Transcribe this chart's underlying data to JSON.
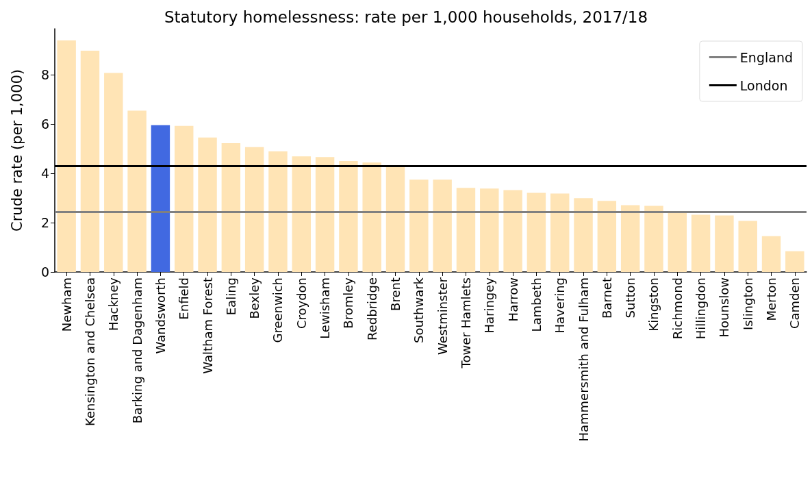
{
  "chart_data": {
    "type": "bar",
    "title": "Statutory homelessness: rate per 1,000 households, 2017/18",
    "ylabel": "Crude rate (per 1,000)",
    "categories": [
      "Newham",
      "Kensington and Chelsea",
      "Hackney",
      "Barking and Dagenham",
      "Wandsworth",
      "Enfield",
      "Waltham Forest",
      "Ealing",
      "Bexley",
      "Greenwich",
      "Croydon",
      "Lewisham",
      "Bromley",
      "Redbridge",
      "Brent",
      "Southwark",
      "Westminster",
      "Tower Hamlets",
      "Haringey",
      "Harrow",
      "Lambeth",
      "Havering",
      "Hammersmith and Fulham",
      "Barnet",
      "Sutton",
      "Kingston",
      "Richmond",
      "Hillingdon",
      "Hounslow",
      "Islington",
      "Merton",
      "Camden"
    ],
    "values": [
      9.39,
      8.97,
      8.07,
      6.54,
      5.95,
      5.92,
      5.45,
      5.22,
      5.06,
      4.89,
      4.69,
      4.66,
      4.5,
      4.44,
      4.33,
      3.74,
      3.74,
      3.41,
      3.38,
      3.32,
      3.21,
      3.18,
      2.99,
      2.88,
      2.71,
      2.68,
      2.4,
      2.32,
      2.29,
      2.07,
      1.45,
      0.84
    ],
    "colors": [
      "#ffe4b5",
      "#ffe4b5",
      "#ffe4b5",
      "#ffe4b5",
      "#4169e1",
      "#ffe4b5",
      "#ffe4b5",
      "#ffe4b5",
      "#ffe4b5",
      "#ffe4b5",
      "#ffe4b5",
      "#ffe4b5",
      "#ffe4b5",
      "#ffe4b5",
      "#ffe4b5",
      "#ffe4b5",
      "#ffe4b5",
      "#ffe4b5",
      "#ffe4b5",
      "#ffe4b5",
      "#ffe4b5",
      "#ffe4b5",
      "#ffe4b5",
      "#ffe4b5",
      "#ffe4b5",
      "#ffe4b5",
      "#ffe4b5",
      "#ffe4b5",
      "#ffe4b5",
      "#ffe4b5",
      "#ffe4b5",
      "#ffe4b5"
    ],
    "ylim": [
      0,
      9.86
    ],
    "yticks": [
      0,
      2,
      4,
      6,
      8
    ],
    "ref_lines": [
      {
        "axis": "y",
        "value": 2.43,
        "label": "England",
        "color": "#808080",
        "line_style": "solid"
      },
      {
        "axis": "y",
        "value": 4.3,
        "label": "London",
        "color": "#000000",
        "line_style": "solid"
      }
    ],
    "grid": false,
    "legend": "top right"
  }
}
